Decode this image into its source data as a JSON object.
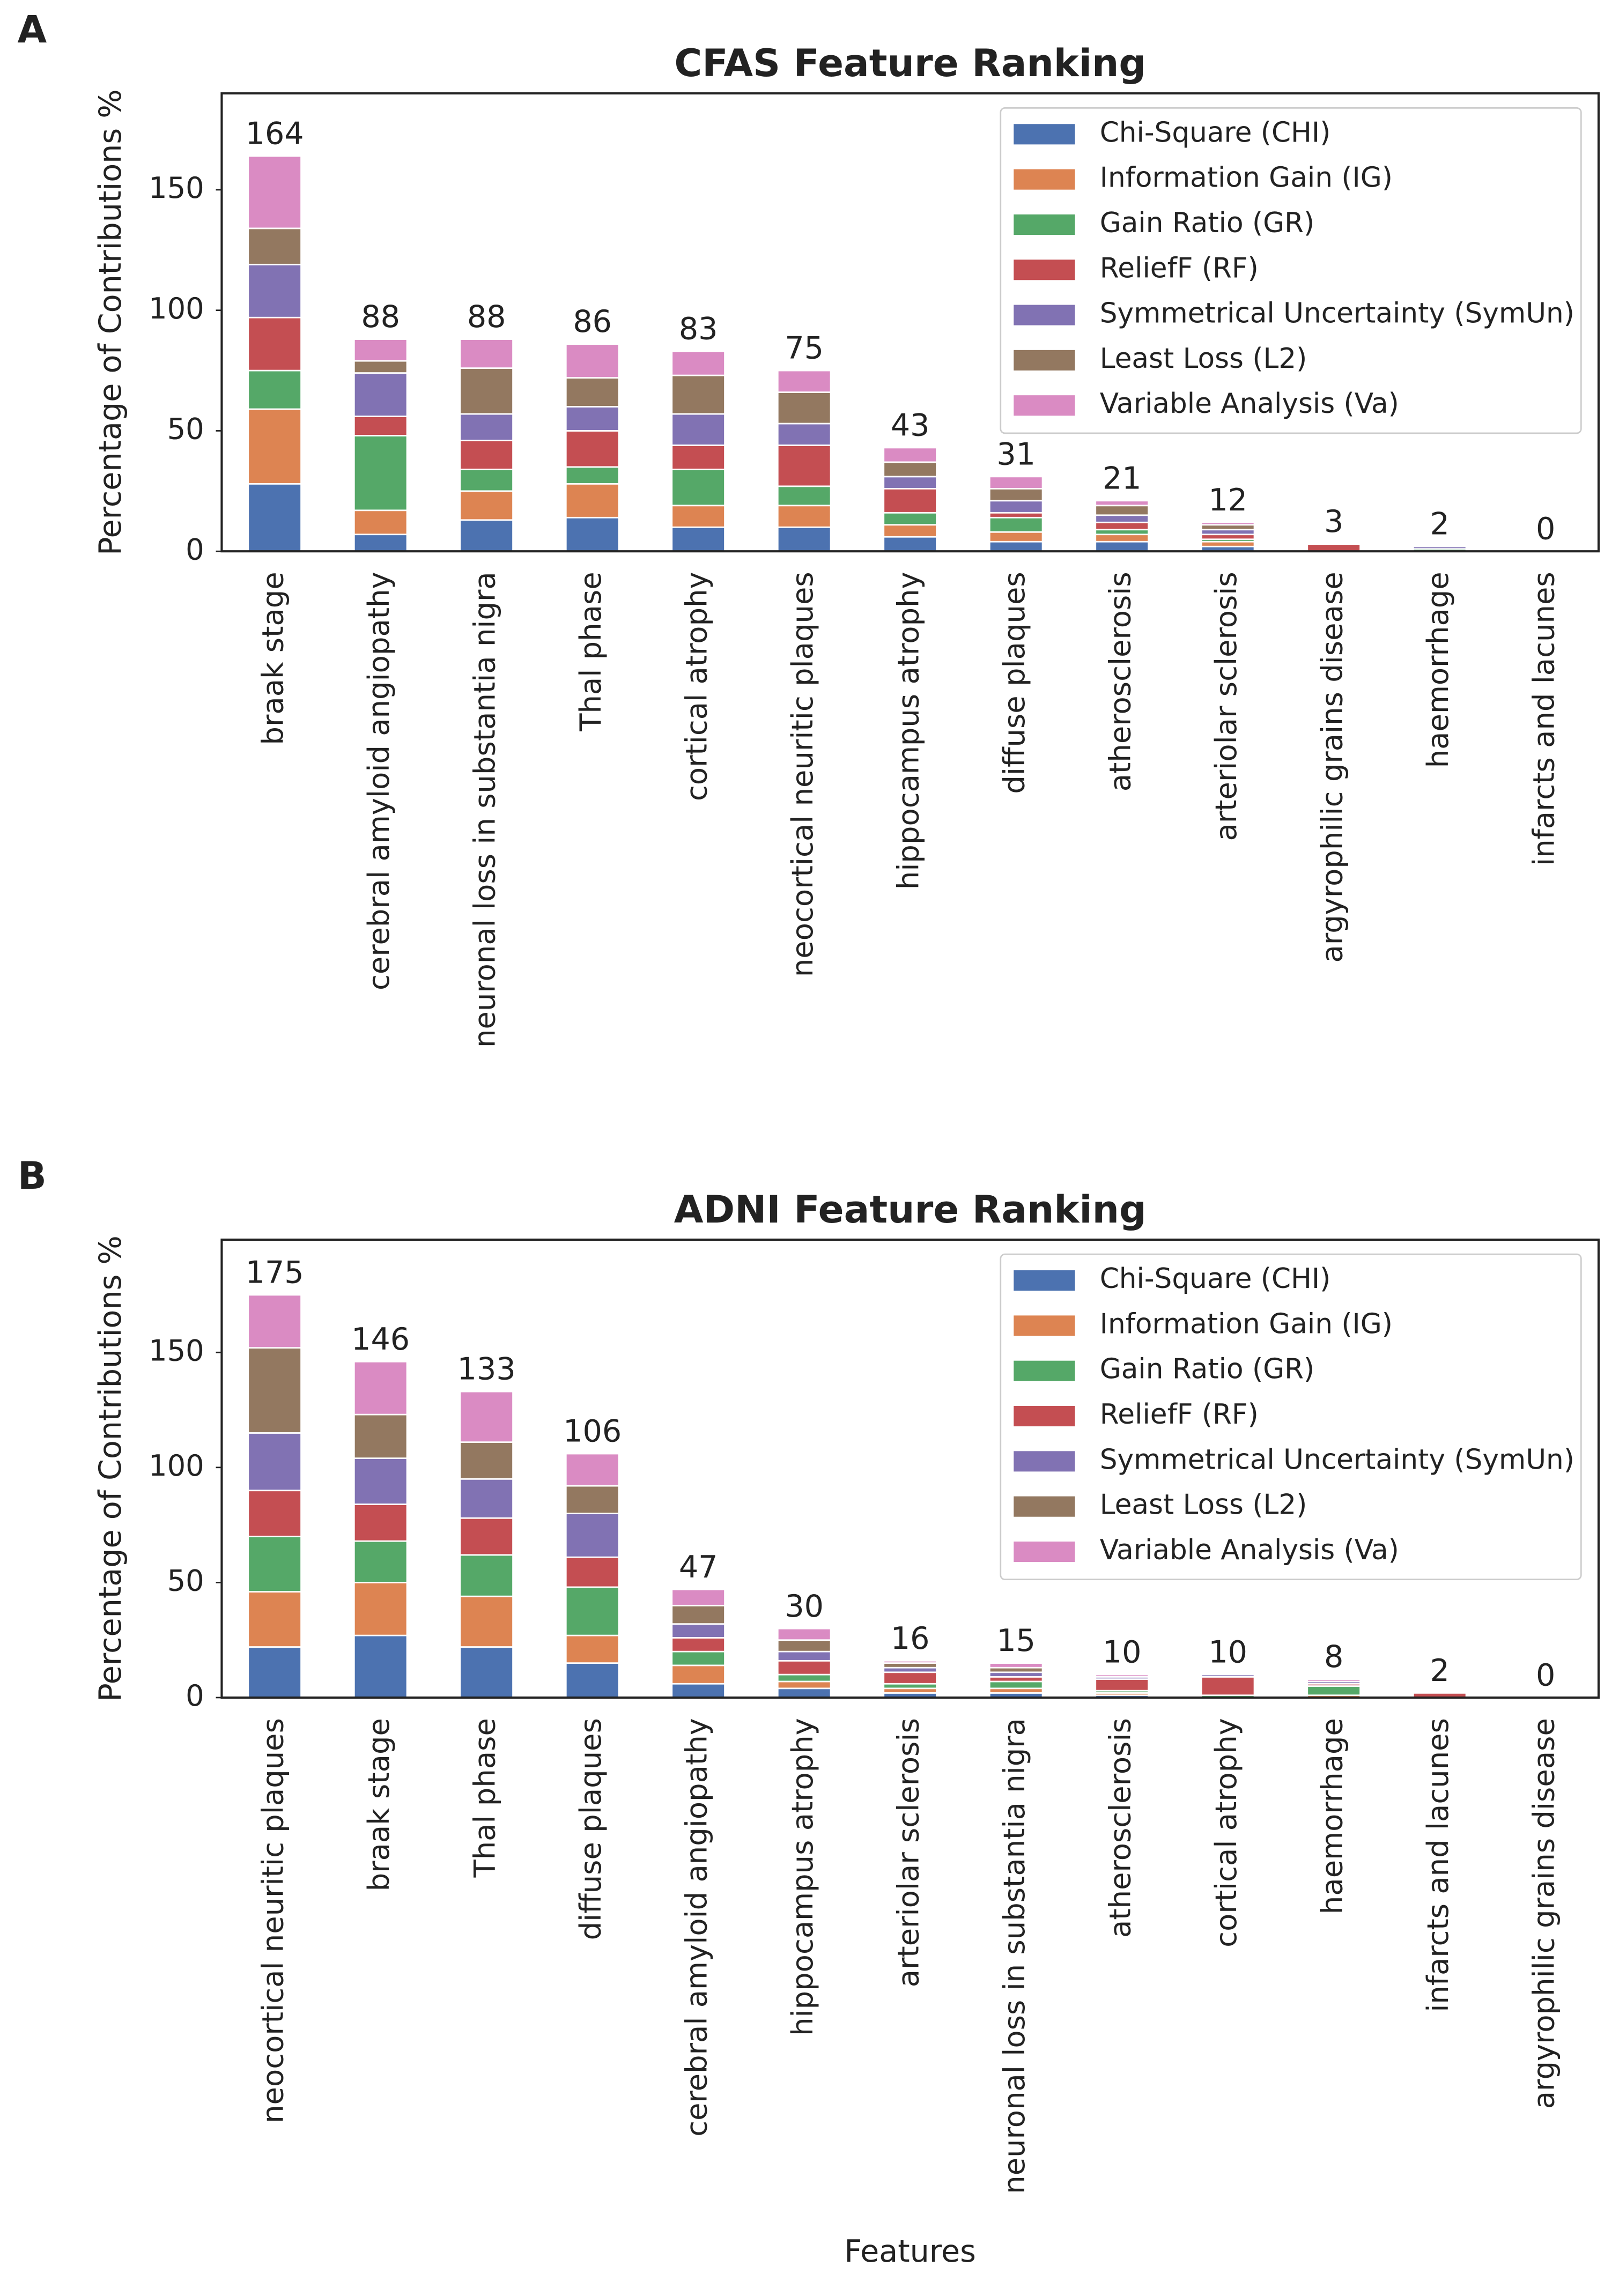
{
  "chart_data": [
    {
      "type": "bar",
      "stacked": true,
      "panel_label": "A",
      "title": "CFAS Feature Ranking",
      "ylabel": "Percentage of Contributions %",
      "categories": [
        "braak stage",
        "cerebral amyloid angiopathy",
        "neuronal loss in substantia nigra",
        "Thal phase",
        "cortical atrophy",
        "neocortical neuritic plaques",
        "hippocampus atrophy",
        "diffuse plaques",
        "atherosclerosis",
        "arteriolar sclerosis",
        "argyrophilic grains disease",
        "haemorrhage",
        "infarcts and lacunes"
      ],
      "series": [
        {
          "name": "Chi-Square (CHI)",
          "color": "#4c72b0",
          "values": [
            28,
            7,
            13,
            14,
            10,
            10,
            6,
            4,
            4,
            2,
            0,
            0,
            0
          ]
        },
        {
          "name": "Information Gain (IG)",
          "color": "#dd8452",
          "values": [
            31,
            10,
            12,
            14,
            9,
            9,
            5,
            4,
            3,
            2,
            0,
            0,
            0
          ]
        },
        {
          "name": "Gain Ratio (GR)",
          "color": "#55a868",
          "values": [
            16,
            31,
            9,
            7,
            15,
            8,
            5,
            6,
            2,
            1,
            0,
            1,
            0
          ]
        },
        {
          "name": "ReliefF (RF)",
          "color": "#c44e52",
          "values": [
            22,
            8,
            12,
            15,
            10,
            17,
            10,
            2,
            3,
            2,
            3,
            0,
            0
          ]
        },
        {
          "name": "Symmetrical Uncertainty (SymUn)",
          "color": "#8172b3",
          "values": [
            22,
            18,
            11,
            10,
            13,
            9,
            5,
            5,
            3,
            2,
            0,
            1,
            0
          ]
        },
        {
          "name": "Least Loss (L2)",
          "color": "#937860",
          "values": [
            15,
            5,
            19,
            12,
            16,
            13,
            6,
            5,
            4,
            2,
            0,
            0,
            0
          ]
        },
        {
          "name": "Variable Analysis (Va)",
          "color": "#da8bc3",
          "values": [
            30,
            9,
            12,
            14,
            10,
            9,
            6,
            5,
            2,
            1,
            0,
            0,
            0
          ]
        }
      ],
      "totals": [
        164,
        88,
        88,
        86,
        83,
        75,
        43,
        31,
        21,
        12,
        3,
        2,
        0
      ],
      "ylim": [
        0,
        190
      ],
      "yticks": [
        0,
        50,
        100,
        150
      ],
      "legend": "upper right"
    },
    {
      "type": "bar",
      "stacked": true,
      "panel_label": "B",
      "title": "ADNI Feature Ranking",
      "ylabel": "Percentage of Contributions %",
      "xlabel": "Features",
      "categories": [
        "neocortical neuritic plaques",
        "braak stage",
        "Thal phase",
        "diffuse plaques",
        "cerebral amyloid angiopathy",
        "hippocampus atrophy",
        "arteriolar sclerosis",
        "neuronal loss in substantia nigra",
        "atherosclerosis",
        "cortical atrophy",
        "haemorrhage",
        "infarcts and lacunes",
        "argyrophilic grains disease"
      ],
      "series": [
        {
          "name": "Chi-Square (CHI)",
          "color": "#4c72b0",
          "values": [
            22,
            27,
            22,
            15,
            6,
            4,
            2,
            2,
            1,
            0,
            0,
            0,
            0
          ]
        },
        {
          "name": "Information Gain (IG)",
          "color": "#dd8452",
          "values": [
            24,
            23,
            22,
            12,
            8,
            3,
            2,
            2,
            1,
            0,
            1,
            0,
            0
          ]
        },
        {
          "name": "Gain Ratio (GR)",
          "color": "#55a868",
          "values": [
            24,
            18,
            18,
            21,
            6,
            3,
            2,
            3,
            1,
            1,
            4,
            0,
            0
          ]
        },
        {
          "name": "ReliefF (RF)",
          "color": "#c44e52",
          "values": [
            20,
            16,
            16,
            13,
            6,
            6,
            5,
            2,
            5,
            8,
            1,
            2,
            0
          ]
        },
        {
          "name": "Symmetrical Uncertainty (SymUn)",
          "color": "#8172b3",
          "values": [
            25,
            20,
            17,
            19,
            6,
            4,
            2,
            2,
            1,
            1,
            1,
            0,
            0
          ]
        },
        {
          "name": "Least Loss (L2)",
          "color": "#937860",
          "values": [
            37,
            19,
            16,
            12,
            8,
            5,
            2,
            2,
            0,
            0,
            0,
            0,
            0
          ]
        },
        {
          "name": "Variable Analysis (Va)",
          "color": "#da8bc3",
          "values": [
            23,
            23,
            22,
            14,
            7,
            5,
            1,
            2,
            1,
            0,
            1,
            0,
            0
          ]
        }
      ],
      "totals": [
        175,
        146,
        133,
        106,
        47,
        30,
        16,
        15,
        10,
        10,
        8,
        2,
        0
      ],
      "ylim": [
        0,
        199
      ],
      "yticks": [
        0,
        50,
        100,
        150
      ],
      "legend": "upper right"
    }
  ]
}
